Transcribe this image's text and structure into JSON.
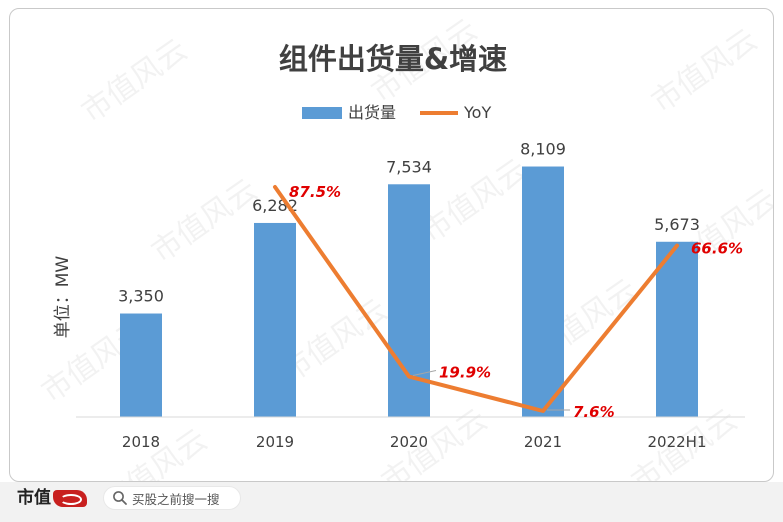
{
  "chart_data": {
    "type": "bar+line",
    "title": "组件出货量&增速",
    "ylabel": "单位：MW",
    "categories": [
      "2018",
      "2019",
      "2020",
      "2021",
      "2022H1"
    ],
    "series": [
      {
        "name": "出货量",
        "type": "bar",
        "values": [
          3350,
          6282,
          7534,
          8109,
          5673
        ],
        "labels": [
          "3,350",
          "6,282",
          "7,534",
          "8,109",
          "5,673"
        ],
        "color": "#5b9bd5"
      },
      {
        "name": "YoY",
        "type": "line",
        "values": [
          null,
          87.5,
          19.9,
          7.6,
          66.6
        ],
        "labels": [
          "",
          "87.5%",
          "19.9%",
          "7.6%",
          "66.6%"
        ],
        "color": "#ed7d31"
      }
    ],
    "bar_ylim": [
      0,
      9000
    ],
    "line_ylim": [
      0,
      100
    ],
    "grid": false,
    "legend": "top-center",
    "label_color": "#e00000"
  },
  "watermark": "市值风云",
  "footer": {
    "brand": "市值",
    "search_placeholder": "买股之前搜一搜"
  }
}
